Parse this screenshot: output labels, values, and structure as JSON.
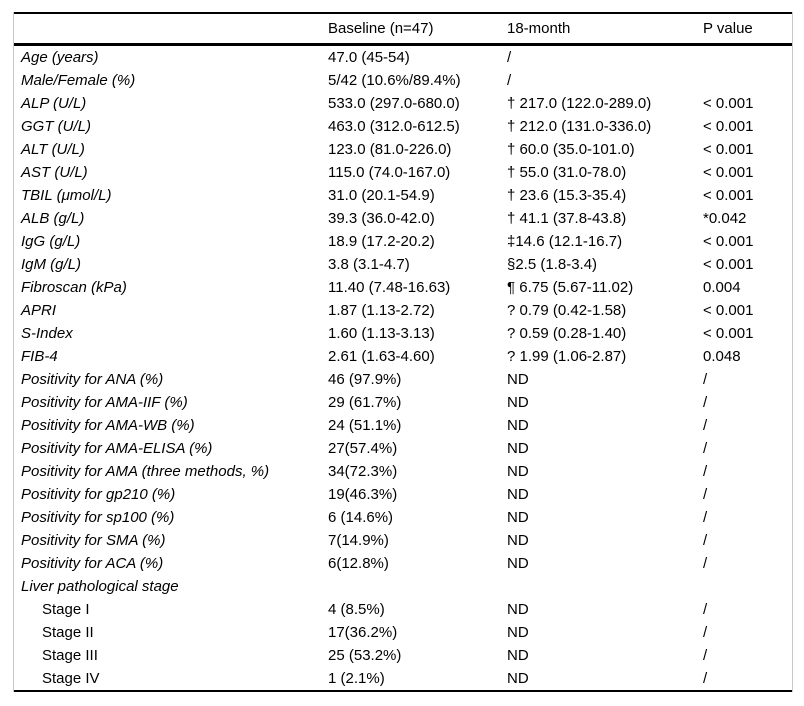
{
  "colors": {
    "background": "#ffffff",
    "text": "#000000",
    "rule": "#000000",
    "frame_edge": "#c9c9c9"
  },
  "table": {
    "columns": [
      "",
      "Baseline (n=47)",
      "18-month",
      "P value"
    ],
    "rows": [
      {
        "label": "Age (years)",
        "baseline": "47.0 (45-54)",
        "month18": "/",
        "p": "",
        "style": "italic"
      },
      {
        "label": "Male/Female (%)",
        "baseline": "5/42 (10.6%/89.4%)",
        "month18": "/",
        "p": "",
        "style": "italic"
      },
      {
        "label": "ALP (U/L)",
        "baseline": "533.0 (297.0-680.0)",
        "month18": "† 217.0 (122.0-289.0)",
        "p": "< 0.001",
        "style": "italic"
      },
      {
        "label": "GGT (U/L)",
        "baseline": "463.0 (312.0-612.5)",
        "month18": "† 212.0 (131.0-336.0)",
        "p": "< 0.001",
        "style": "italic"
      },
      {
        "label": "ALT (U/L)",
        "baseline": "123.0 (81.0-226.0)",
        "month18": "† 60.0 (35.0-101.0)",
        "p": "< 0.001",
        "style": "italic"
      },
      {
        "label": "AST (U/L)",
        "baseline": "115.0 (74.0-167.0)",
        "month18": "† 55.0 (31.0-78.0)",
        "p": "< 0.001",
        "style": "italic"
      },
      {
        "label": "TBIL (μmol/L)",
        "baseline": "31.0 (20.1-54.9)",
        "month18": "† 23.6 (15.3-35.4)",
        "p": "< 0.001",
        "style": "italic"
      },
      {
        "label": "ALB (g/L)",
        "baseline": "39.3 (36.0-42.0)",
        "month18": "† 41.1 (37.8-43.8)",
        "p": "*0.042",
        "style": "italic"
      },
      {
        "label": "IgG (g/L)",
        "baseline": "18.9 (17.2-20.2)",
        "month18": "‡14.6 (12.1-16.7)",
        "p": "< 0.001",
        "style": "italic"
      },
      {
        "label": "IgM (g/L)",
        "baseline": "3.8 (3.1-4.7)",
        "month18": "§2.5 (1.8-3.4)",
        "p": "< 0.001",
        "style": "italic"
      },
      {
        "label": "Fibroscan (kPa)",
        "baseline": "11.40 (7.48-16.63)",
        "month18": "¶ 6.75 (5.67-11.02)",
        "p": "0.004",
        "style": "italic"
      },
      {
        "label": "APRI",
        "baseline": "1.87 (1.13-2.72)",
        "month18": "? 0.79 (0.42-1.58)",
        "p": "< 0.001",
        "style": "italic"
      },
      {
        "label": "S-Index",
        "baseline": "1.60 (1.13-3.13)",
        "month18": "? 0.59 (0.28-1.40)",
        "p": "< 0.001",
        "style": "italic"
      },
      {
        "label": "FIB-4",
        "baseline": "2.61 (1.63-4.60)",
        "month18": "? 1.99 (1.06-2.87)",
        "p": "0.048",
        "style": "italic"
      },
      {
        "label": "Positivity for ANA (%)",
        "baseline": "46 (97.9%)",
        "month18": "ND",
        "p": "/",
        "style": "italic"
      },
      {
        "label": "Positivity for AMA-IIF (%)",
        "baseline": "29 (61.7%)",
        "month18": "ND",
        "p": "/",
        "style": "italic"
      },
      {
        "label": "Positivity for AMA-WB (%)",
        "baseline": "24 (51.1%)",
        "month18": "ND",
        "p": "/",
        "style": "italic"
      },
      {
        "label": "Positivity for AMA-ELISA (%)",
        "baseline": "27(57.4%)",
        "month18": "ND",
        "p": "/",
        "style": "italic"
      },
      {
        "label": "Positivity for AMA (three methods, %)",
        "baseline": "34(72.3%)",
        "month18": "ND",
        "p": "/",
        "style": "italic"
      },
      {
        "label": "Positivity for gp210 (%)",
        "baseline": "19(46.3%)",
        "month18": "ND",
        "p": "/",
        "style": "italic"
      },
      {
        "label": "Positivity for sp100 (%)",
        "baseline": "6 (14.6%)",
        "month18": "ND",
        "p": "/",
        "style": "italic"
      },
      {
        "label": "Positivity for SMA (%)",
        "baseline": "7(14.9%)",
        "month18": "ND",
        "p": "/",
        "style": "italic"
      },
      {
        "label": "Positivity for ACA (%)",
        "baseline": "6(12.8%)",
        "month18": "ND",
        "p": "/",
        "style": "italic"
      },
      {
        "label": "Liver pathological stage",
        "baseline": "",
        "month18": "",
        "p": "",
        "style": "italic"
      },
      {
        "label": "Stage I",
        "baseline": "4 (8.5%)",
        "month18": "ND",
        "p": "/",
        "style": "indent"
      },
      {
        "label": "Stage II",
        "baseline": "17(36.2%)",
        "month18": "ND",
        "p": "/",
        "style": "indent"
      },
      {
        "label": "Stage III",
        "baseline": "25 (53.2%)",
        "month18": "ND",
        "p": "/",
        "style": "indent"
      },
      {
        "label": "Stage IV",
        "baseline": "1 (2.1%)",
        "month18": "ND",
        "p": "/",
        "style": "indent"
      }
    ]
  }
}
